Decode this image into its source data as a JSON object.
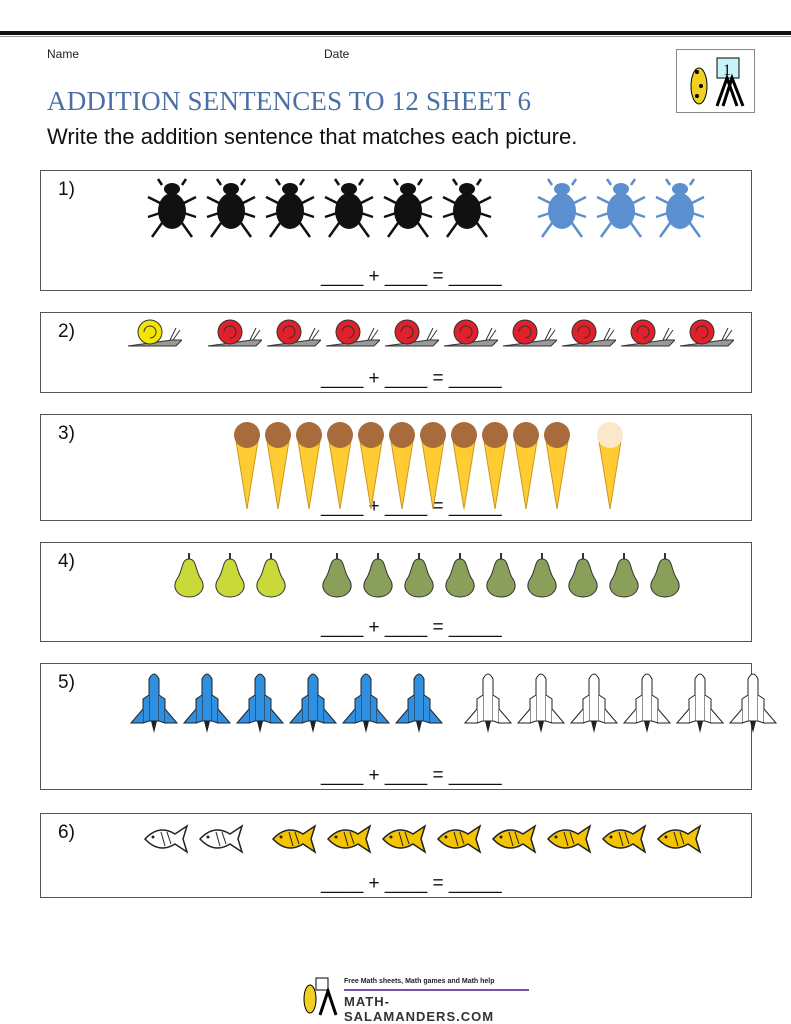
{
  "header": {
    "name_label": "Name",
    "date_label": "Date",
    "title": "ADDITION SENTENCES TO 12 SHEET 6",
    "instruction": "Write the addition sentence that matches each picture.",
    "logo_grade": "1"
  },
  "questions": [
    {
      "number": "1)",
      "groups": [
        {
          "item": "beetle",
          "color": "#111111",
          "count": 6
        },
        {
          "item": "beetle",
          "color": "#5b8fd0",
          "count": 3
        }
      ],
      "sentence": "____ + ____ = _____"
    },
    {
      "number": "2)",
      "groups": [
        {
          "item": "snail",
          "color": "#f2e600",
          "count": 1
        },
        {
          "item": "snail",
          "color": "#e0202a",
          "count": 9
        }
      ],
      "sentence": "____ + ____ = _____"
    },
    {
      "number": "3)",
      "groups": [
        {
          "item": "ice-cream",
          "color": "#a86b3c",
          "count": 11
        },
        {
          "item": "ice-cream",
          "color": "#fbe8c8",
          "count": 1
        }
      ],
      "sentence": "____ + ____ = _____"
    },
    {
      "number": "4)",
      "groups": [
        {
          "item": "pear",
          "color": "#c9d93a",
          "count": 3
        },
        {
          "item": "pear",
          "color": "#8a9f5a",
          "count": 9
        }
      ],
      "sentence": "____ + ____ = _____"
    },
    {
      "number": "5)",
      "groups": [
        {
          "item": "rocket",
          "color": "#2f8fe0",
          "count": 6
        },
        {
          "item": "rocket",
          "color": "#ffffff",
          "count": 6
        }
      ],
      "sentence": "____ + ____ = _____"
    },
    {
      "number": "6)",
      "groups": [
        {
          "item": "fish",
          "color": "#ffffff",
          "count": 2
        },
        {
          "item": "fish",
          "color": "#f5c400",
          "count": 8
        }
      ],
      "sentence": "____ + ____ = _____"
    }
  ],
  "footer": {
    "tagline": "Free Math sheets, Math games and Math help",
    "site": "MATH-SALAMANDERS.COM"
  }
}
